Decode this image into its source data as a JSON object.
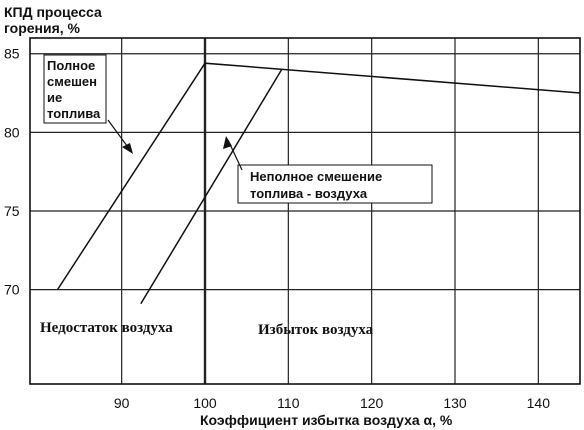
{
  "chart_data": {
    "type": "line",
    "title_lines": [
      "КПД процесса",
      "горения,  %"
    ],
    "xlabel": "Коэффициент избытка воздуха α,  %",
    "xlim": [
      79,
      145
    ],
    "ylim": [
      64,
      86
    ],
    "x_ticks": [
      90,
      100,
      110,
      120,
      130,
      140
    ],
    "y_ticks": [
      70,
      75,
      80,
      85
    ],
    "grid": true,
    "series": [
      {
        "name": "Полное смешение топлива",
        "points": [
          [
            82.3,
            70.0
          ],
          [
            100.0,
            84.4
          ],
          [
            145.0,
            82.5
          ]
        ]
      },
      {
        "name": "Неполное смешение топлива - воздуха",
        "points": [
          [
            92.3,
            69.1
          ],
          [
            109.2,
            84.0
          ]
        ]
      }
    ],
    "annotations": {
      "full_mix": [
        "Полное",
        "смешен",
        "ие",
        "топлива"
      ],
      "partial_mix": [
        "Неполное смешение",
        "топлива - воздуха"
      ],
      "deficit": "Недостаток воздуха",
      "excess": "Избыток воздуха"
    }
  }
}
